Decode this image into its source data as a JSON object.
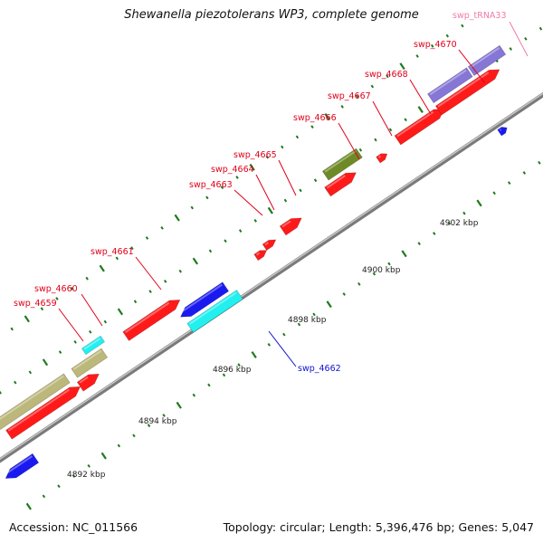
{
  "title": "Shewanella piezotolerans WP3, complete genome",
  "accession": "Accession: NC_011566",
  "summary": "Topology: circular; Length: 5,396,476 bp; Genes: 5,047",
  "colors": {
    "backbone": "#8a8a8a",
    "tick": "#1f7a1f",
    "red": "#ff1a1a",
    "blue": "#1a1af0",
    "cyan": "#22f0f0",
    "khaki": "#bcb77a",
    "olive": "#6e8a26",
    "purple": "#8676d6",
    "label_red": "#e0001a",
    "label_blue": "#1010d0",
    "label_pink": "#f07aa8"
  },
  "scale_labels": [
    {
      "text": "4892 kbp",
      "kbp": 4892
    },
    {
      "text": "4894 kbp",
      "kbp": 4894
    },
    {
      "text": "4896 kbp",
      "kbp": 4896
    },
    {
      "text": "4898 kbp",
      "kbp": 4898
    },
    {
      "text": "4900 kbp",
      "kbp": 4900
    },
    {
      "text": "4902 kbp",
      "kbp": 4902
    }
  ],
  "gene_labels": [
    {
      "id": "swp_4659",
      "text": "swp_4659",
      "color": "red"
    },
    {
      "id": "swp_4660",
      "text": "swp_4660",
      "color": "red"
    },
    {
      "id": "swp_4661",
      "text": "swp_4661",
      "color": "red"
    },
    {
      "id": "swp_4662",
      "text": "swp_4662",
      "color": "blue"
    },
    {
      "id": "swp_4663",
      "text": "swp_4663",
      "color": "red"
    },
    {
      "id": "swp_4664",
      "text": "swp_4664",
      "color": "red"
    },
    {
      "id": "swp_4665",
      "text": "swp_4665",
      "color": "red"
    },
    {
      "id": "swp_4666",
      "text": "swp_4666",
      "color": "red"
    },
    {
      "id": "swp_4667",
      "text": "swp_4667",
      "color": "red"
    },
    {
      "id": "swp_4668",
      "text": "swp_4668",
      "color": "red"
    },
    {
      "id": "swp_4670",
      "text": "swp_4670",
      "color": "red"
    },
    {
      "id": "swp_tRNA33",
      "text": "swp_tRNA33",
      "color": "pink"
    }
  ]
}
